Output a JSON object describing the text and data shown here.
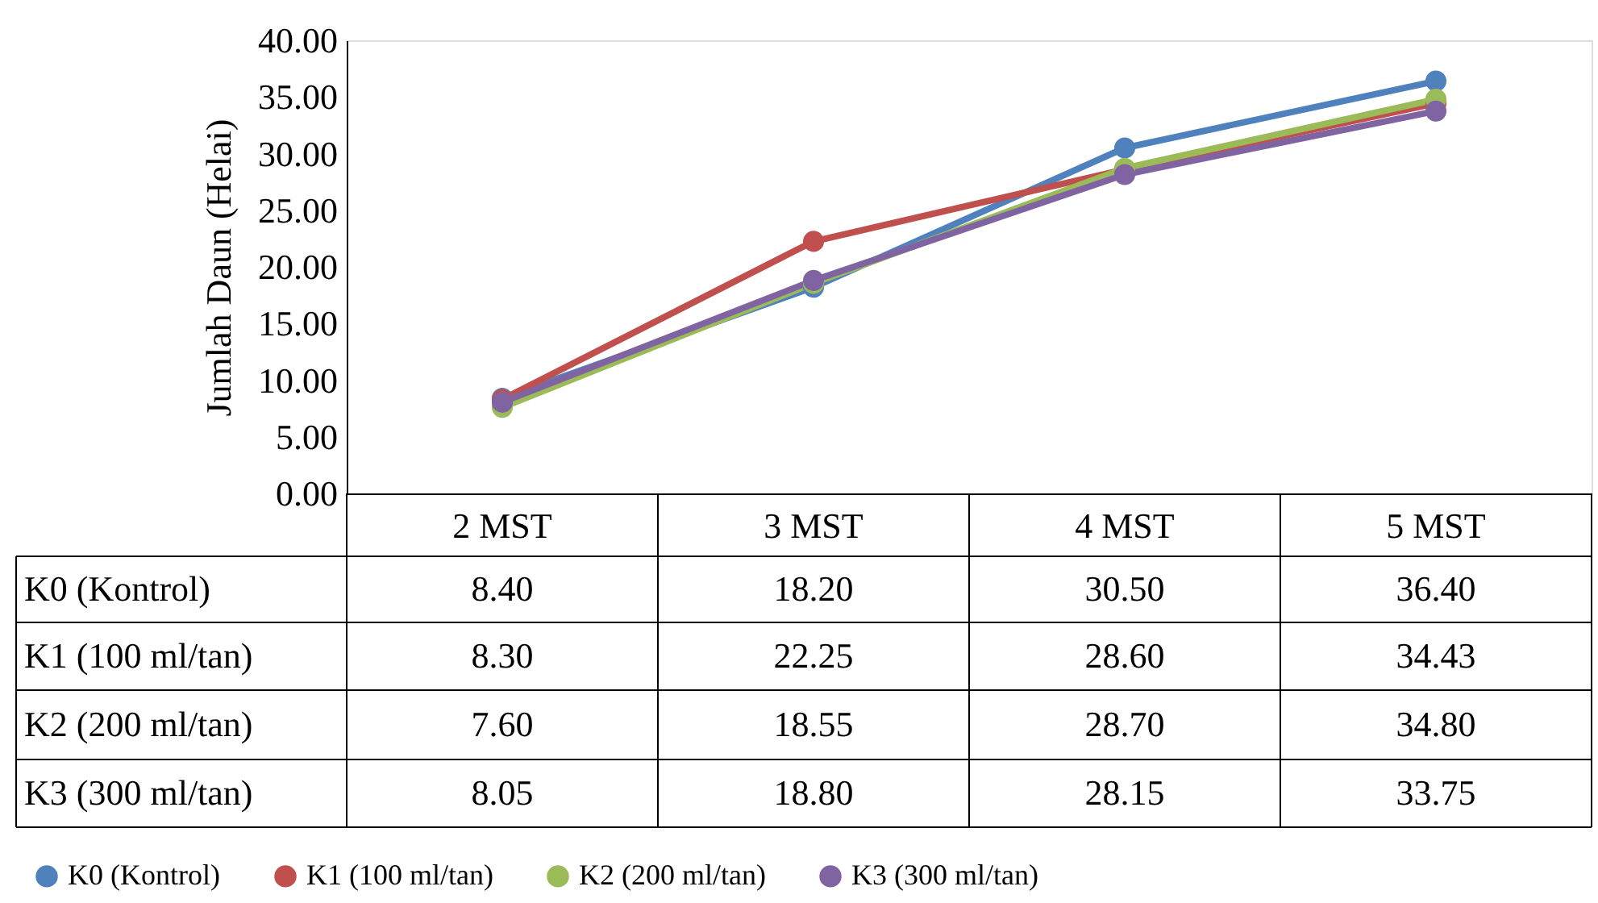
{
  "chart_data": {
    "type": "line",
    "ylabel": "Jumlah Daun (Helai)",
    "categories": [
      "2 MST",
      "3 MST",
      "4 MST",
      "5 MST"
    ],
    "series": [
      {
        "name": "K0 (Kontrol)",
        "color": "#4f81bd",
        "values": [
          8.4,
          18.2,
          30.5,
          36.4
        ],
        "value_labels": [
          "8.40",
          "18.20",
          "30.50",
          "36.40"
        ]
      },
      {
        "name": "K1 (100 ml/tan)",
        "color": "#c0504d",
        "values": [
          8.3,
          22.25,
          28.6,
          34.43
        ],
        "value_labels": [
          "8.30",
          "22.25",
          "28.60",
          "34.43"
        ]
      },
      {
        "name": "K2 (200 ml/tan)",
        "color": "#9bbb59",
        "values": [
          7.6,
          18.55,
          28.7,
          34.8
        ],
        "value_labels": [
          "7.60",
          "18.55",
          "28.70",
          "34.80"
        ]
      },
      {
        "name": "K3 (300 ml/tan)",
        "color": "#8064a2",
        "values": [
          8.05,
          18.8,
          28.15,
          33.75
        ],
        "value_labels": [
          "8.05",
          "18.80",
          "28.15",
          "33.75"
        ]
      }
    ],
    "ylim": [
      0,
      40
    ],
    "yticks": [
      {
        "value": 0,
        "label": "0.00"
      },
      {
        "value": 5,
        "label": "5.00"
      },
      {
        "value": 10,
        "label": "10.00"
      },
      {
        "value": 15,
        "label": "15.00"
      },
      {
        "value": 20,
        "label": "20.00"
      },
      {
        "value": 25,
        "label": "25.00"
      },
      {
        "value": 30,
        "label": "30.00"
      },
      {
        "value": 35,
        "label": "35.00"
      },
      {
        "value": 40,
        "label": "40.00"
      }
    ],
    "legend": "bottom",
    "marker": "circle",
    "line_style": "solid",
    "grid": false
  }
}
